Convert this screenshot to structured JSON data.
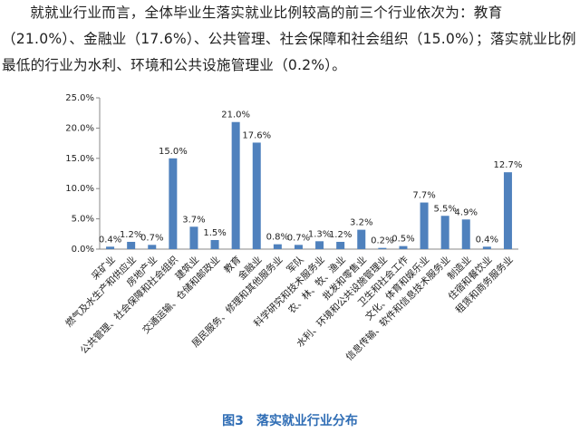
{
  "paragraph": "就就业行业而言，全体毕业生落实就业比例较高的前三个行业依次为：教育（21.0%）、金融业（17.6%）、公共管理、社会保障和社会组织（15.0%）；落实就业比例最低的行业为水利、环境和公共设施管理业（0.2%）。",
  "caption": "图3　落实就业行业分布",
  "chart_data": {
    "type": "bar",
    "categories": [
      "采矿业",
      "燃气及水生产和供应业",
      "房地产业",
      "公共管理、社会保障和社会组织",
      "建筑业",
      "交通运输、仓储和邮政业",
      "教育",
      "金融业",
      "居民服务、修理和其他服务业",
      "军队",
      "科学研究和技术服务业",
      "农、林、牧、渔业",
      "批发和零售业",
      "水利、环境和公共设施管理业",
      "卫生和社会工作",
      "文化、体育和娱乐业",
      "信息传输、软件和信息技术服务业",
      "制造业",
      "住宿和餐饮业",
      "租赁和商务服务业"
    ],
    "values": [
      0.4,
      1.2,
      0.7,
      15.0,
      3.7,
      1.5,
      21.0,
      17.6,
      0.8,
      0.7,
      1.3,
      1.2,
      3.2,
      0.2,
      0.5,
      7.7,
      5.5,
      4.9,
      0.4,
      12.7
    ],
    "value_labels": [
      "0.4%",
      "1.2%",
      "0.7%",
      "15.0%",
      "3.7%",
      "1.5%",
      "21.0%",
      "17.6%",
      "0.8%",
      "0.7%",
      "1.3%",
      "1.2%",
      "3.2%",
      "0.2%",
      "0.5%",
      "7.7%",
      "5.5%",
      "4.9%",
      "0.4%",
      "12.7%"
    ],
    "color": "#4f81bd",
    "ylim": [
      0,
      25
    ],
    "yticks": [
      {
        "value": 0,
        "label": "0.0%"
      },
      {
        "value": 5,
        "label": "5.0%"
      },
      {
        "value": 10,
        "label": "10.0%"
      },
      {
        "value": 15,
        "label": "15.0%"
      },
      {
        "value": 20,
        "label": "20.0%"
      },
      {
        "value": 25,
        "label": "25.0%"
      }
    ],
    "grid": false
  }
}
